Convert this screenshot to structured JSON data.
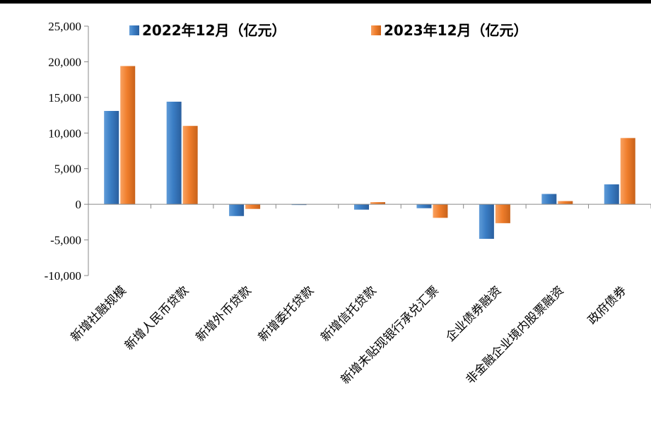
{
  "chart_data": {
    "type": "bar",
    "categories": [
      "新增社融规模",
      "新增人民币贷款",
      "新增外币贷款",
      "新增委托贷款",
      "新增信托贷款",
      "新增未贴现银行承兑汇票",
      "企业债券融资",
      "非金融企业境内股票融资",
      "政府债券"
    ],
    "series": [
      {
        "name": "2022年12月（亿元）",
        "color": "#3a7dc4",
        "values": [
          13100,
          14400,
          -1650,
          -50,
          -750,
          -550,
          -4850,
          1450,
          2800
        ]
      },
      {
        "name": "2023年12月（亿元）",
        "color": "#f07e2c",
        "values": [
          19400,
          11000,
          -650,
          0,
          300,
          -1900,
          -2650,
          450,
          9300
        ]
      }
    ],
    "ylim": [
      -10000,
      25000
    ],
    "ytick_step": 5000,
    "ytick_labels": [
      "25,000",
      "20,000",
      "15,000",
      "10,000",
      "5,000",
      "0",
      "-5,000",
      "-10,000"
    ],
    "legend_position": "top",
    "grid": false
  }
}
